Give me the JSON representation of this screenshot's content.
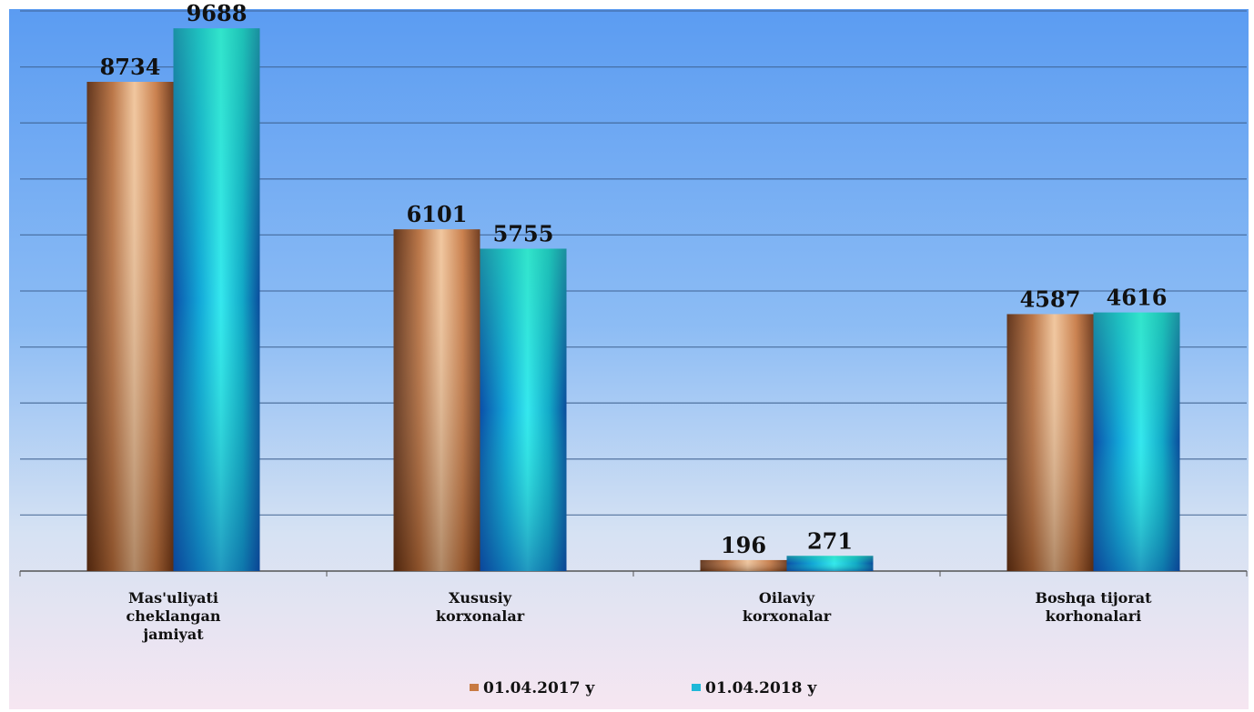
{
  "chart_data": {
    "type": "bar",
    "categories": [
      [
        "Mas'uliyati",
        "cheklangan",
        "jamiyat"
      ],
      [
        "Xususiy",
        "korxonalar"
      ],
      [
        "Oilaviy",
        "korxonalar"
      ],
      [
        "Boshqa tijorat",
        "korhonalari"
      ]
    ],
    "series": [
      {
        "name": "01.04.2017 y",
        "values": [
          8734,
          6101,
          196,
          4587
        ],
        "color": "#c87a42"
      },
      {
        "name": "01.04.2018 y",
        "values": [
          9688,
          5755,
          271,
          4616
        ],
        "color": "#1fb8d8"
      }
    ],
    "ylim": [
      0,
      10000
    ],
    "gridlines": true,
    "legend_position": "bottom"
  },
  "colors": {
    "background_top": "#5b9cf2",
    "background_bottom": "#f6e6f1",
    "gridline": "#3b5d8c"
  }
}
